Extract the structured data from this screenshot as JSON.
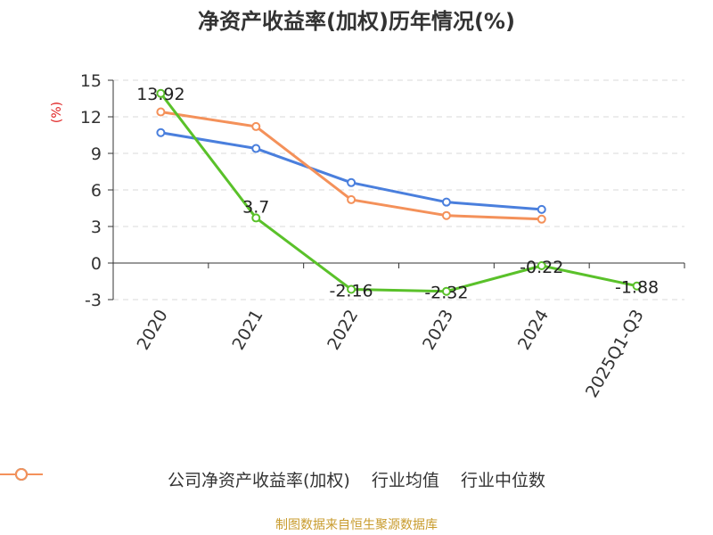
{
  "chart_data": {
    "type": "line",
    "title": "净资产收益率(加权)历年情况(%)",
    "ylabel": "(%)",
    "xlabel": "",
    "categories": [
      "2020",
      "2021",
      "2022",
      "2023",
      "2024",
      "2025Q1-Q3"
    ],
    "ylim": [
      -3,
      15
    ],
    "yticks": [
      "15",
      "12",
      "9",
      "6",
      "3",
      "0",
      "-3"
    ],
    "grid": true,
    "legend_position": "bottom",
    "series": [
      {
        "name": "公司净资产收益率(加权)",
        "color": "#5ac12a",
        "values": [
          13.92,
          3.7,
          -2.16,
          -2.32,
          -0.22,
          -1.88
        ],
        "labels": [
          "13.92",
          "3.7",
          "-2.16",
          "-2.32",
          "-0.22",
          "-1.88"
        ]
      },
      {
        "name": "行业均值",
        "color": "#4a7fdd",
        "values": [
          10.7,
          9.4,
          6.6,
          5.0,
          4.4,
          null
        ]
      },
      {
        "name": "行业中位数",
        "color": "#f4915a",
        "values": [
          12.4,
          11.2,
          5.2,
          3.9,
          3.6,
          null
        ]
      }
    ]
  },
  "source": "制图数据来自恒生聚源数据库"
}
